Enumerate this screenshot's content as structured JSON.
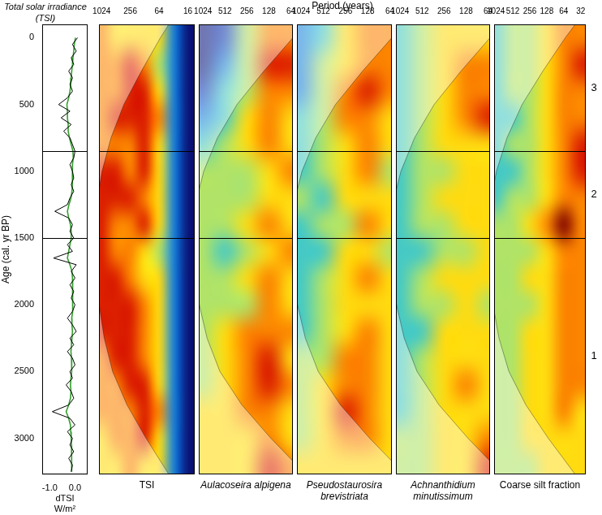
{
  "shared_xlabel": "Period (years)",
  "chart_data": [
    {
      "type": "line",
      "title": "Total solar irradiance (TSI)",
      "xlabel": [
        "dTSI",
        "W/m²"
      ],
      "ylabel": "Age (cal. yr BP)",
      "xlim": [
        -1.3,
        0.5
      ],
      "xticks": [
        {
          "value": -1,
          "label": "-1.0"
        },
        {
          "value": 0,
          "label": "0.0"
        }
      ],
      "ylim": [
        -100,
        3270
      ],
      "yticks": [
        0,
        500,
        1000,
        1500,
        2000,
        2500,
        3000
      ],
      "y": [
        0,
        50,
        100,
        150,
        200,
        250,
        300,
        350,
        400,
        450,
        500,
        550,
        600,
        650,
        700,
        750,
        800,
        850,
        900,
        950,
        1000,
        1050,
        1100,
        1150,
        1200,
        1250,
        1300,
        1350,
        1400,
        1450,
        1500,
        1550,
        1600,
        1650,
        1700,
        1750,
        1800,
        1850,
        1900,
        1950,
        2000,
        2050,
        2100,
        2150,
        2200,
        2250,
        2300,
        2350,
        2400,
        2450,
        2500,
        2550,
        2600,
        2650,
        2700,
        2750,
        2800,
        2850,
        2900,
        2950,
        3000,
        3050,
        3100,
        3150,
        3200,
        3250
      ],
      "series": [
        {
          "color": "#000000",
          "values": [
            0.1,
            -0.1,
            0.05,
            -0.15,
            -0.05,
            -0.25,
            -0.1,
            -0.2,
            -0.1,
            -0.3,
            -0.65,
            -0.2,
            -0.55,
            -0.15,
            -0.45,
            -0.2,
            -0.1,
            0.0,
            -0.05,
            -0.2,
            -0.1,
            -0.05,
            -0.15,
            -0.05,
            -0.2,
            -0.3,
            -0.8,
            -0.25,
            -0.1,
            -0.2,
            -0.05,
            -0.3,
            -0.1,
            -0.85,
            0.05,
            -0.15,
            0.0,
            -0.2,
            -0.05,
            -0.15,
            0.0,
            -0.1,
            -0.3,
            -0.1,
            0.05,
            -0.2,
            -0.05,
            -0.3,
            -0.1,
            0.0,
            -0.2,
            -0.1,
            -0.35,
            -0.15,
            -0.05,
            -0.25,
            -0.9,
            -0.2,
            0.0,
            -0.3,
            -0.1,
            -0.2,
            -0.05,
            -0.25,
            -0.1,
            -0.15
          ]
        },
        {
          "color": "#33a02c",
          "values": [
            0.02,
            -0.03,
            -0.05,
            -0.08,
            -0.1,
            -0.13,
            -0.15,
            -0.17,
            -0.2,
            -0.25,
            -0.32,
            -0.3,
            -0.3,
            -0.27,
            -0.27,
            -0.22,
            -0.15,
            -0.08,
            -0.07,
            -0.1,
            -0.1,
            -0.1,
            -0.11,
            -0.12,
            -0.16,
            -0.24,
            -0.3,
            -0.25,
            -0.18,
            -0.15,
            -0.15,
            -0.2,
            -0.25,
            -0.3,
            -0.2,
            -0.12,
            -0.1,
            -0.1,
            -0.1,
            -0.08,
            -0.08,
            -0.1,
            -0.13,
            -0.12,
            -0.1,
            -0.12,
            -0.14,
            -0.16,
            -0.14,
            -0.12,
            -0.14,
            -0.16,
            -0.18,
            -0.16,
            -0.18,
            -0.25,
            -0.35,
            -0.25,
            -0.18,
            -0.17,
            -0.15,
            -0.14,
            -0.13,
            -0.14,
            -0.13,
            -0.13
          ]
        }
      ],
      "hlines": [
        850,
        1500
      ]
    },
    {
      "type": "heatmap",
      "title": "TSI",
      "log": "x",
      "tick_labels": "x",
      "xlim": [
        1160,
        11.5
      ],
      "xticks": [
        1024,
        256,
        64,
        16
      ],
      "ylim": [
        -100,
        3270
      ],
      "periods": [
        1024,
        512,
        256,
        128,
        64,
        32,
        16
      ],
      "ages": [
        0,
        200,
        400,
        600,
        800,
        1000,
        1200,
        1400,
        1600,
        1800,
        2000,
        2200,
        2400,
        2600,
        2800,
        3000,
        3200
      ],
      "power": [
        [
          7,
          6,
          6,
          6,
          6,
          3,
          1
        ],
        [
          7,
          7,
          8,
          7,
          5,
          3,
          1
        ],
        [
          7,
          7,
          8,
          8,
          6,
          3,
          1
        ],
        [
          7,
          8,
          8,
          8,
          7,
          3,
          1
        ],
        [
          7,
          7,
          7,
          8,
          6,
          3,
          1
        ],
        [
          8,
          8,
          7,
          8,
          6,
          3,
          1
        ],
        [
          8,
          8,
          8,
          7,
          6,
          3,
          1
        ],
        [
          8,
          7,
          7,
          8,
          6,
          3,
          1
        ],
        [
          8,
          7,
          7,
          6,
          5,
          3,
          1
        ],
        [
          8,
          8,
          7,
          6,
          6,
          3,
          1
        ],
        [
          8,
          8,
          8,
          7,
          6,
          3,
          1
        ],
        [
          8,
          8,
          8,
          7,
          6,
          3,
          1
        ],
        [
          7,
          8,
          8,
          7,
          6,
          3,
          1
        ],
        [
          7,
          7,
          8,
          8,
          6,
          3,
          1
        ],
        [
          7,
          7,
          7,
          8,
          7,
          3,
          1
        ],
        [
          6,
          7,
          7,
          8,
          6,
          3,
          1
        ],
        [
          6,
          6,
          7,
          6,
          6,
          3,
          1
        ]
      ],
      "coi": {
        "ages": [
          -100,
          0,
          250,
          500,
          750,
          1000,
          1250,
          1500,
          1750,
          2000,
          2250,
          2500,
          2750,
          3000,
          3270
        ],
        "periods": [
          40,
          60,
          150,
          350,
          650,
          1000,
          1300,
          1500,
          1400,
          1150,
          900,
          600,
          300,
          120,
          40
        ]
      },
      "hlines": [
        850,
        1500
      ]
    },
    {
      "type": "heatmap",
      "title": "Aulacoseira alpigena",
      "log": "x",
      "tick_labels": "x",
      "xlim": [
        1170,
        60
      ],
      "xticks": [
        1024,
        512,
        256,
        128,
        64
      ],
      "ylim": [
        -100,
        3270
      ],
      "periods": [
        1024,
        512,
        256,
        128,
        64
      ],
      "ages": [
        0,
        200,
        400,
        600,
        800,
        1000,
        1200,
        1400,
        1600,
        1800,
        2000,
        2200,
        2400,
        2600,
        2800,
        3000,
        3200
      ],
      "power": [
        [
          1,
          2,
          5,
          7,
          7
        ],
        [
          1,
          3,
          5,
          8,
          8
        ],
        [
          2,
          4,
          5,
          7,
          7
        ],
        [
          3,
          4,
          6,
          7,
          6
        ],
        [
          4,
          5,
          6,
          7,
          6
        ],
        [
          5,
          5,
          5,
          6,
          7
        ],
        [
          5,
          5,
          5,
          6,
          6
        ],
        [
          5,
          5,
          6,
          7,
          6
        ],
        [
          5,
          4,
          5,
          6,
          7
        ],
        [
          5,
          5,
          6,
          7,
          6
        ],
        [
          5,
          5,
          5,
          7,
          6
        ],
        [
          5,
          6,
          7,
          7,
          7
        ],
        [
          5,
          6,
          7,
          8,
          6
        ],
        [
          5,
          6,
          7,
          8,
          7
        ],
        [
          6,
          6,
          7,
          7,
          6
        ],
        [
          6,
          6,
          6,
          7,
          6
        ],
        [
          6,
          6,
          6,
          8,
          7
        ]
      ],
      "coi": {
        "ages": [
          -100,
          0,
          250,
          500,
          750,
          1000,
          1250,
          1500,
          1750,
          2000,
          2250,
          2500,
          2750,
          3000,
          3270
        ],
        "periods": [
          40,
          60,
          150,
          350,
          650,
          1000,
          1300,
          1500,
          1400,
          1150,
          900,
          600,
          300,
          120,
          40
        ]
      },
      "hlines": [
        850,
        1500
      ]
    },
    {
      "type": "heatmap",
      "title": "Pseudostaurosira brevistriata",
      "log": "x",
      "tick_labels": "x",
      "xlim": [
        1170,
        60
      ],
      "xticks": [
        1024,
        512,
        256,
        128,
        64
      ],
      "ylim": [
        -100,
        3270
      ],
      "periods": [
        1024,
        512,
        256,
        128,
        64
      ],
      "ages": [
        0,
        200,
        400,
        600,
        800,
        1000,
        1200,
        1400,
        1600,
        1800,
        2000,
        2200,
        2400,
        2600,
        2800,
        3000,
        3200
      ],
      "power": [
        [
          3,
          4,
          6,
          7,
          7
        ],
        [
          3,
          5,
          6,
          7,
          7
        ],
        [
          3,
          5,
          7,
          8,
          7
        ],
        [
          4,
          5,
          7,
          7,
          6
        ],
        [
          4,
          5,
          6,
          7,
          6
        ],
        [
          4,
          5,
          6,
          7,
          5
        ],
        [
          5,
          4,
          6,
          6,
          6
        ],
        [
          4,
          5,
          5,
          7,
          6
        ],
        [
          4,
          4,
          6,
          6,
          5
        ],
        [
          4,
          5,
          6,
          7,
          6
        ],
        [
          4,
          5,
          6,
          6,
          6
        ],
        [
          4,
          5,
          6,
          7,
          6
        ],
        [
          5,
          5,
          7,
          7,
          6
        ],
        [
          5,
          6,
          7,
          7,
          6
        ],
        [
          5,
          6,
          8,
          7,
          6
        ],
        [
          5,
          6,
          7,
          7,
          6
        ],
        [
          6,
          6,
          6,
          6,
          6
        ]
      ],
      "coi": {
        "ages": [
          -100,
          0,
          250,
          500,
          750,
          1000,
          1250,
          1500,
          1750,
          2000,
          2250,
          2500,
          2750,
          3000,
          3270
        ],
        "periods": [
          40,
          60,
          150,
          350,
          650,
          1000,
          1300,
          1500,
          1400,
          1150,
          900,
          600,
          300,
          120,
          40
        ]
      },
      "hlines": [
        850,
        1500
      ]
    },
    {
      "type": "heatmap",
      "title": "Achnanthidium minutissimum",
      "log": "x",
      "tick_labels": "x",
      "xlim": [
        1170,
        60
      ],
      "xticks": [
        1024,
        512,
        256,
        128,
        64
      ],
      "ylim": [
        -100,
        3270
      ],
      "periods": [
        1024,
        512,
        256,
        128,
        64
      ],
      "ages": [
        0,
        200,
        400,
        600,
        800,
        1000,
        1200,
        1400,
        1600,
        1800,
        2000,
        2200,
        2400,
        2600,
        2800,
        3000,
        3200
      ],
      "power": [
        [
          4,
          5,
          6,
          6,
          6
        ],
        [
          4,
          5,
          6,
          7,
          7
        ],
        [
          4,
          5,
          6,
          7,
          7
        ],
        [
          4,
          5,
          6,
          7,
          8
        ],
        [
          4,
          5,
          6,
          6,
          6
        ],
        [
          4,
          5,
          5,
          6,
          6
        ],
        [
          4,
          5,
          6,
          6,
          6
        ],
        [
          4,
          5,
          5,
          6,
          6
        ],
        [
          4,
          4,
          5,
          5,
          6
        ],
        [
          4,
          5,
          6,
          6,
          6
        ],
        [
          4,
          5,
          5,
          6,
          5
        ],
        [
          4,
          4,
          6,
          6,
          6
        ],
        [
          4,
          5,
          6,
          6,
          6
        ],
        [
          4,
          5,
          6,
          7,
          6
        ],
        [
          4,
          5,
          6,
          6,
          6
        ],
        [
          5,
          5,
          6,
          6,
          7
        ],
        [
          5,
          5,
          6,
          6,
          8
        ]
      ],
      "coi": {
        "ages": [
          -100,
          0,
          250,
          500,
          750,
          1000,
          1250,
          1500,
          1750,
          2000,
          2250,
          2500,
          2750,
          3000,
          3270
        ],
        "periods": [
          40,
          60,
          150,
          350,
          650,
          1000,
          1300,
          1500,
          1400,
          1150,
          900,
          600,
          300,
          120,
          40
        ]
      },
      "hlines": [
        850,
        1500
      ]
    },
    {
      "type": "heatmap",
      "title": "Coarse silt fraction",
      "log": "x",
      "tick_labels": "x",
      "xlim": [
        1100,
        26
      ],
      "xticks": [
        1024,
        512,
        256,
        128,
        64,
        32
      ],
      "ylim": [
        -100,
        3270
      ],
      "periods": [
        1024,
        512,
        256,
        128,
        64,
        32
      ],
      "ages": [
        0,
        200,
        400,
        600,
        800,
        1000,
        1200,
        1400,
        1600,
        1800,
        2000,
        2200,
        2400,
        2600,
        2800,
        3000,
        3200
      ],
      "power": [
        [
          4,
          5,
          5,
          6,
          7,
          7
        ],
        [
          4,
          5,
          5,
          6,
          7,
          8
        ],
        [
          4,
          5,
          5,
          6,
          7,
          7
        ],
        [
          4,
          4,
          5,
          6,
          7,
          7
        ],
        [
          4,
          5,
          5,
          6,
          7,
          8
        ],
        [
          4,
          4,
          5,
          6,
          7,
          8
        ],
        [
          4,
          5,
          5,
          6,
          7,
          7
        ],
        [
          5,
          5,
          6,
          7,
          9,
          7
        ],
        [
          5,
          5,
          5,
          6,
          7,
          7
        ],
        [
          5,
          5,
          6,
          6,
          7,
          7
        ],
        [
          5,
          5,
          5,
          6,
          7,
          7
        ],
        [
          5,
          5,
          6,
          6,
          7,
          7
        ],
        [
          5,
          5,
          6,
          6,
          7,
          7
        ],
        [
          5,
          5,
          6,
          6,
          7,
          7
        ],
        [
          5,
          5,
          6,
          6,
          7,
          6
        ],
        [
          5,
          5,
          6,
          6,
          6,
          6
        ],
        [
          5,
          5,
          5,
          6,
          6,
          6
        ]
      ],
      "coi": {
        "ages": [
          -100,
          0,
          250,
          500,
          750,
          1000,
          1250,
          1500,
          1750,
          2000,
          2250,
          2500,
          2750,
          3000,
          3270
        ],
        "periods": [
          40,
          60,
          150,
          350,
          650,
          1000,
          1300,
          1500,
          1400,
          1150,
          900,
          600,
          300,
          120,
          40
        ]
      },
      "hlines": [
        850,
        1500
      ],
      "zone_labels": [
        "3",
        "2",
        "1"
      ]
    }
  ]
}
